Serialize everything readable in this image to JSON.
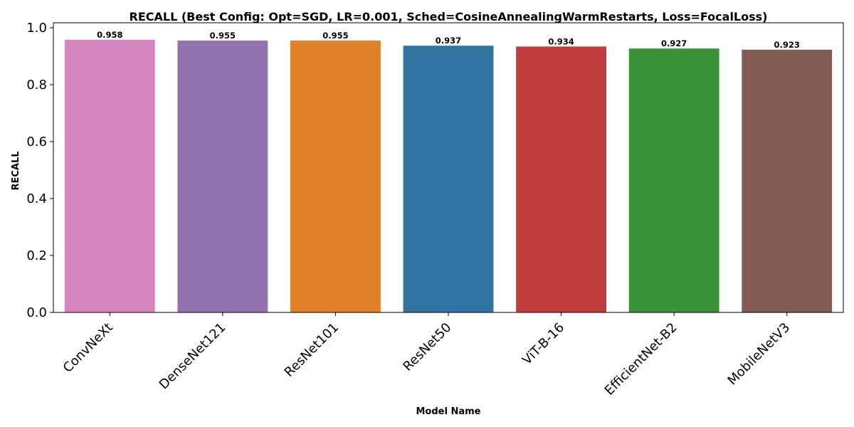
{
  "chart_data": {
    "type": "bar",
    "title": "RECALL (Best Config: Opt=SGD, LR=0.001, Sched=CosineAnnealingWarmRestarts, Loss=FocalLoss)",
    "xlabel": "Model Name",
    "ylabel": "RECALL",
    "categories": [
      "ConvNeXt",
      "DenseNet121",
      "ResNet101",
      "ResNet50",
      "ViT-B-16",
      "EfficientNet-B2",
      "MobileNetV3"
    ],
    "values": [
      0.958,
      0.955,
      0.955,
      0.937,
      0.934,
      0.927,
      0.923
    ],
    "value_labels": [
      "0.958",
      "0.955",
      "0.955",
      "0.937",
      "0.934",
      "0.927",
      "0.923"
    ],
    "colors": [
      "#d684bd",
      "#9372b0",
      "#e1812c",
      "#3274a1",
      "#c03d3e",
      "#3a923a",
      "#845b53"
    ],
    "ylim": [
      0,
      1.0
    ],
    "yticks": [
      0.0,
      0.2,
      0.4,
      0.6,
      0.8,
      1.0
    ],
    "ytick_labels": [
      "0.0",
      "0.2",
      "0.4",
      "0.6",
      "0.8",
      "1.0"
    ],
    "grid": false,
    "legend": "none"
  }
}
